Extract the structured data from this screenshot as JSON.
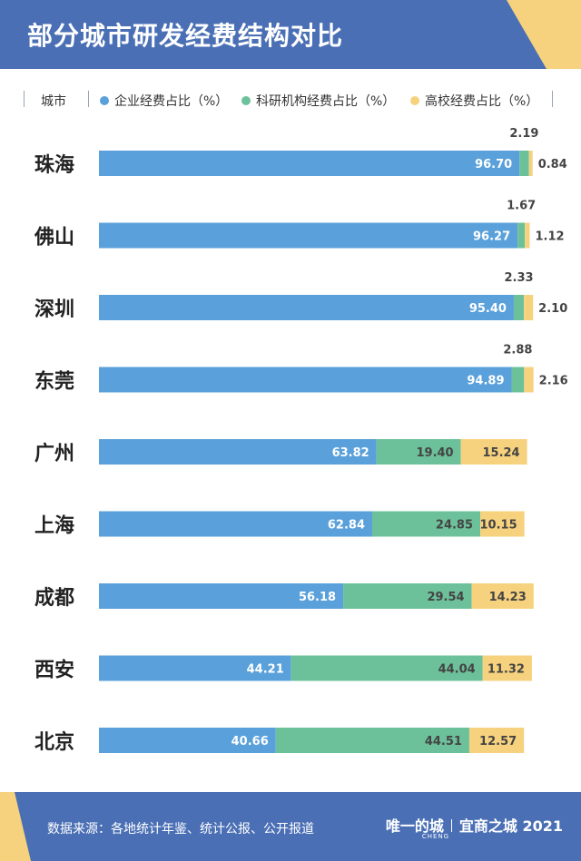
{
  "title": "部分城市研发经费结构对比",
  "legend": {
    "city_label": "城市",
    "items": [
      {
        "label": "企业经费占比（%）",
        "color": "#5aa0da"
      },
      {
        "label": "科研机构经费占比（%）",
        "color": "#6cc19a"
      },
      {
        "label": "高校经费占比（%）",
        "color": "#f7d27e"
      }
    ]
  },
  "footer": {
    "source": "数据来源：各地统计年鉴、统计公报、公开报道",
    "brand_left": "唯一的城",
    "brand_sub": "CHENG",
    "brand_right": "宜商之城 2021"
  },
  "colors": {
    "header": "#4a6fb5",
    "accent": "#f7d27e"
  },
  "chart_data": {
    "type": "bar",
    "orientation": "horizontal",
    "stacked": true,
    "categories": [
      "珠海",
      "佛山",
      "深圳",
      "东莞",
      "广州",
      "上海",
      "成都",
      "西安",
      "北京"
    ],
    "series": [
      {
        "name": "企业经费占比（%）",
        "values": [
          96.7,
          96.27,
          95.4,
          94.89,
          63.82,
          62.84,
          56.18,
          44.21,
          40.66
        ]
      },
      {
        "name": "科研机构经费占比（%）",
        "values": [
          2.19,
          1.67,
          2.33,
          2.88,
          19.4,
          24.85,
          29.54,
          44.04,
          44.51
        ]
      },
      {
        "name": "高校经费占比（%）",
        "values": [
          0.84,
          1.12,
          2.1,
          2.16,
          15.24,
          10.15,
          14.23,
          11.32,
          12.57
        ]
      }
    ],
    "value_labels": [
      [
        "96.70",
        "2.19",
        "0.84"
      ],
      [
        "96.27",
        "1.67",
        "1.12"
      ],
      [
        "95.40",
        "2.33",
        "2.10"
      ],
      [
        "94.89",
        "2.88",
        "2.16"
      ],
      [
        "63.82",
        "19.40",
        "15.24"
      ],
      [
        "62.84",
        "24.85",
        "10.15"
      ],
      [
        "56.18",
        "29.54",
        "14.23"
      ],
      [
        "44.21",
        "44.04",
        "11.32"
      ],
      [
        "40.66",
        "44.51",
        "12.57"
      ]
    ]
  }
}
